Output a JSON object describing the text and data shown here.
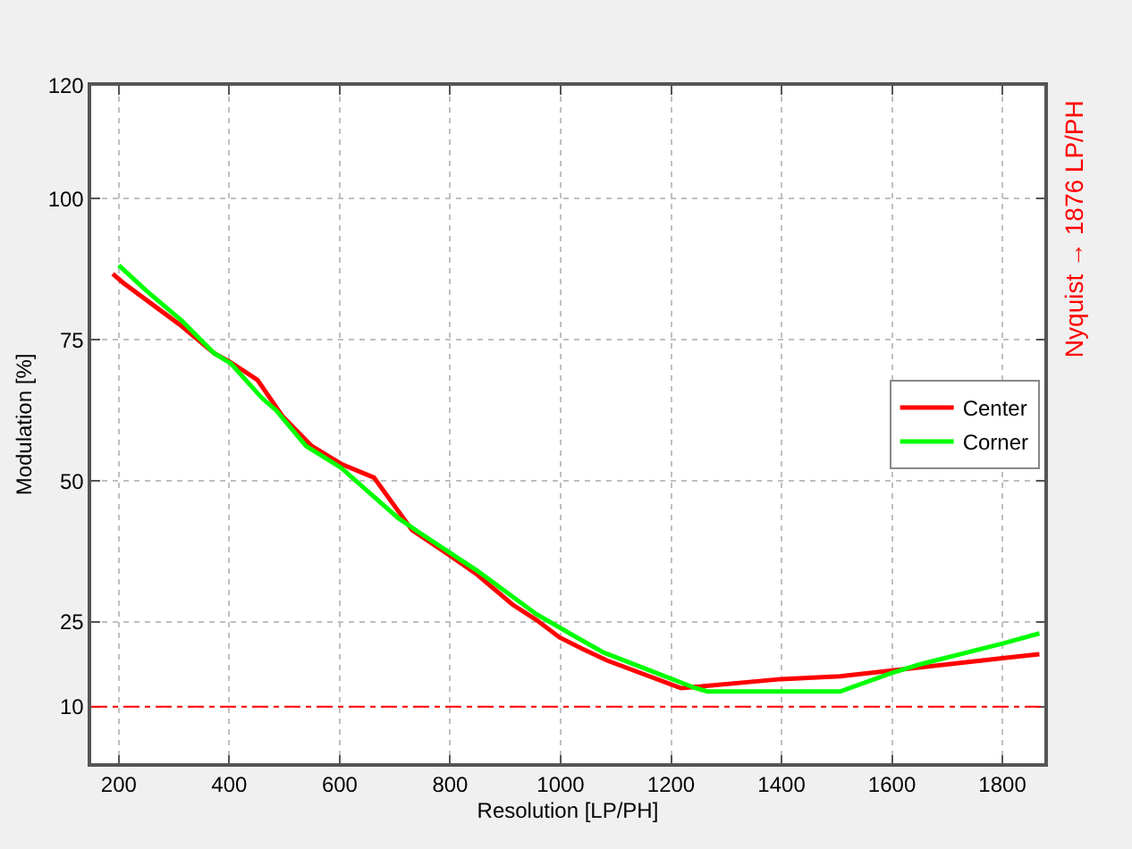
{
  "chart_data": {
    "type": "line",
    "xlabel": "Resolution [LP/PH]",
    "ylabel": "Modulation [%]",
    "annotations": [
      "Nyquist → 1876 LP/PH"
    ],
    "xlim": [
      150,
      1876
    ],
    "xticks": [
      200,
      400,
      600,
      800,
      1000,
      1200,
      1400,
      1600,
      1800
    ],
    "ylim": [
      0,
      120
    ],
    "yticks": [
      10,
      25,
      50,
      75,
      100,
      120
    ],
    "grid": true,
    "legend": "right",
    "ref_lines": [
      {
        "axis": "y",
        "value": 10,
        "color": "#ff0000",
        "line_style": "dashdot"
      }
    ],
    "series": [
      {
        "name": "Center",
        "color": "#ff0000",
        "x": [
          189,
          208,
          270,
          314,
          373,
          403,
          451,
          496,
          549,
          603,
          662,
          731,
          795,
          849,
          913,
          956,
          998,
          1041,
          1084,
          1218,
          1255,
          1399,
          1506,
          1597,
          1800,
          1867
        ],
        "values": [
          86.7,
          85.1,
          80.6,
          77.4,
          72.6,
          71.0,
          67.9,
          61.5,
          56.2,
          53.0,
          50.6,
          41.3,
          37.1,
          33.4,
          28.1,
          25.4,
          22.3,
          20.2,
          18.2,
          13.3,
          13.6,
          14.9,
          15.4,
          16.4,
          18.6,
          19.3
        ]
      },
      {
        "name": "Corner",
        "color": "#00ff00",
        "x": [
          200,
          250,
          314,
          373,
          403,
          459,
          485,
          539,
          603,
          662,
          705,
          742,
          849,
          956,
          1020,
          1078,
          1244,
          1266,
          1506,
          1597,
          1650,
          1800,
          1867
        ],
        "values": [
          88.2,
          83.7,
          78.4,
          72.6,
          70.8,
          64.7,
          62.5,
          56.2,
          52.3,
          47.2,
          43.5,
          41.0,
          34.1,
          26.4,
          22.8,
          19.6,
          13.3,
          12.7,
          12.7,
          15.9,
          17.5,
          21.2,
          23.0
        ]
      }
    ]
  }
}
